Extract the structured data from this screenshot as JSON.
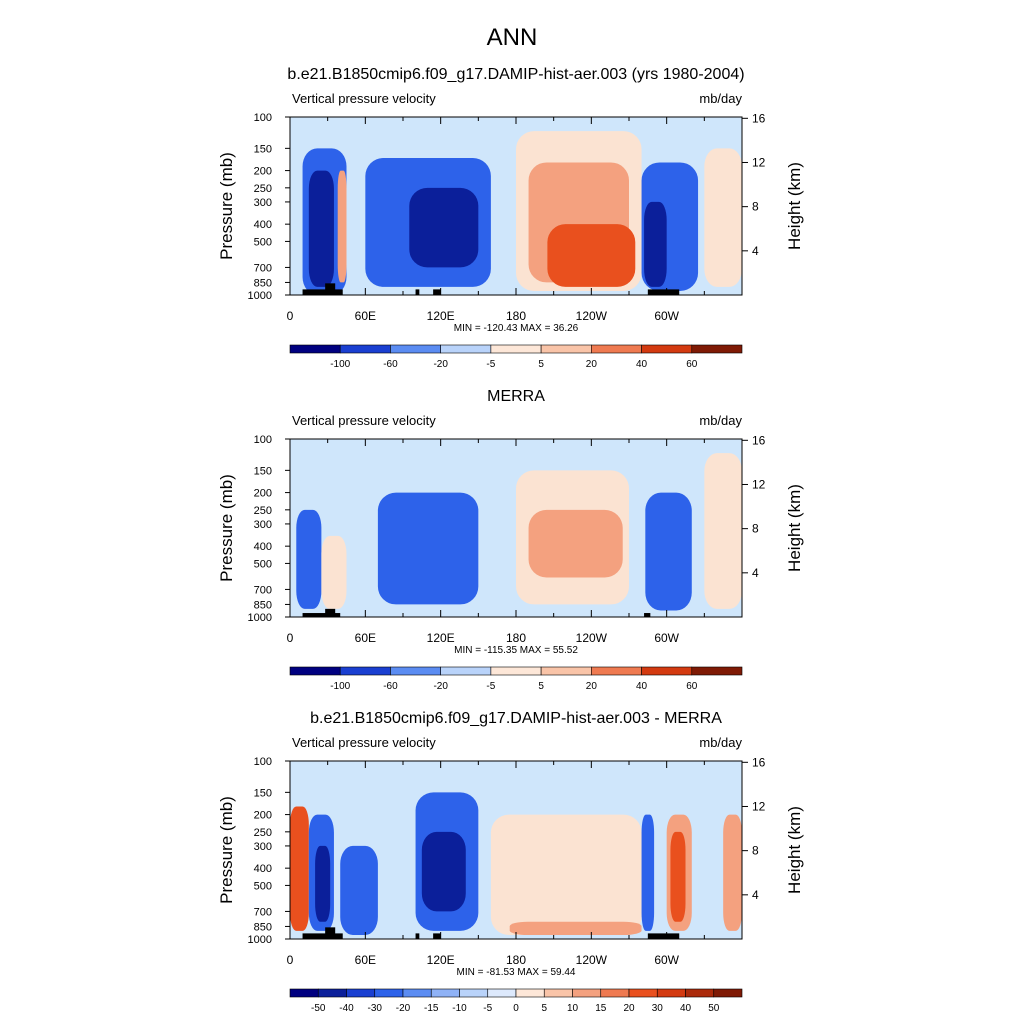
{
  "figure": {
    "title": "ANN"
  },
  "colors": {
    "strong_up": "#0b1f9a",
    "up": "#2d62ea",
    "weak_up": "#cfe6fb",
    "weak_down": "#fbe3d2",
    "down": "#f4a17f",
    "strong_down": "#e9501e",
    "land_mask": "#000000"
  },
  "chart_data": [
    {
      "type": "heatmap",
      "title": "b.e21.B1850cmip6.f09_g17.DAMIP-hist-aer.003 (yrs 1980-2004)",
      "left_label": "Vertical pressure velocity",
      "units": "mb/day",
      "ylabel": "Pressure (mb)",
      "ylabel_right": "Height (km)",
      "x_ticks": [
        "0",
        "60E",
        "120E",
        "180",
        "120W",
        "60W"
      ],
      "y_ticks": [
        "100",
        "150",
        "200",
        "250",
        "300",
        "400",
        "500",
        "700",
        "850",
        "1000"
      ],
      "y_ticks_right": [
        "16",
        "12",
        "8",
        "4"
      ],
      "stats": "MIN = -120.43  MAX =  36.26",
      "colorbar_labels": [
        "-100",
        "-60",
        "-20",
        "-5",
        "5",
        "20",
        "40",
        "60"
      ],
      "features": [
        {
          "lon": [
            10,
            45
          ],
          "p": [
            150,
            1000
          ],
          "level": "up"
        },
        {
          "lon": [
            15,
            35
          ],
          "p": [
            200,
            900
          ],
          "level": "strong_up"
        },
        {
          "lon": [
            38,
            45
          ],
          "p": [
            200,
            850
          ],
          "level": "down"
        },
        {
          "lon": [
            55,
            175
          ],
          "p": [
            140,
            950
          ],
          "level": "weak_up"
        },
        {
          "lon": [
            60,
            160
          ],
          "p": [
            170,
            900
          ],
          "level": "up"
        },
        {
          "lon": [
            95,
            150
          ],
          "p": [
            250,
            700
          ],
          "level": "strong_up"
        },
        {
          "lon": [
            180,
            280
          ],
          "p": [
            120,
            950
          ],
          "level": "weak_down"
        },
        {
          "lon": [
            190,
            270
          ],
          "p": [
            180,
            850
          ],
          "level": "down"
        },
        {
          "lon": [
            205,
            275
          ],
          "p": [
            400,
            900
          ],
          "level": "strong_down"
        },
        {
          "lon": [
            280,
            325
          ],
          "p": [
            180,
            950
          ],
          "level": "up"
        },
        {
          "lon": [
            282,
            300
          ],
          "p": [
            300,
            900
          ],
          "level": "strong_up"
        },
        {
          "lon": [
            330,
            360
          ],
          "p": [
            150,
            900
          ],
          "level": "weak_down"
        }
      ],
      "land_blocks": [
        {
          "lon": [
            10,
            42
          ],
          "p": [
            930,
            1000
          ]
        },
        {
          "lon": [
            28,
            36
          ],
          "p": [
            860,
            1000
          ]
        },
        {
          "lon": [
            100,
            103
          ],
          "p": [
            930,
            1000
          ]
        },
        {
          "lon": [
            114,
            120
          ],
          "p": [
            930,
            1000
          ]
        },
        {
          "lon": [
            285,
            310
          ],
          "p": [
            930,
            1000
          ]
        }
      ]
    },
    {
      "type": "heatmap",
      "title": "MERRA",
      "left_label": "Vertical pressure velocity",
      "units": "mb/day",
      "ylabel": "Pressure (mb)",
      "ylabel_right": "Height (km)",
      "x_ticks": [
        "0",
        "60E",
        "120E",
        "180",
        "120W",
        "60W"
      ],
      "y_ticks": [
        "100",
        "150",
        "200",
        "250",
        "300",
        "400",
        "500",
        "700",
        "850",
        "1000"
      ],
      "y_ticks_right": [
        "16",
        "12",
        "8",
        "4"
      ],
      "stats": "MIN = -115.35  MAX =  55.52",
      "colorbar_labels": [
        "-100",
        "-60",
        "-20",
        "-5",
        "5",
        "20",
        "40",
        "60"
      ],
      "features": [
        {
          "lon": [
            0,
            30
          ],
          "p": [
            170,
            950
          ],
          "level": "weak_up"
        },
        {
          "lon": [
            5,
            25
          ],
          "p": [
            250,
            900
          ],
          "level": "up"
        },
        {
          "lon": [
            25,
            45
          ],
          "p": [
            350,
            900
          ],
          "level": "weak_down"
        },
        {
          "lon": [
            55,
            170
          ],
          "p": [
            140,
            950
          ],
          "level": "weak_up"
        },
        {
          "lon": [
            70,
            150
          ],
          "p": [
            200,
            850
          ],
          "level": "up"
        },
        {
          "lon": [
            180,
            270
          ],
          "p": [
            150,
            850
          ],
          "level": "weak_down"
        },
        {
          "lon": [
            190,
            265
          ],
          "p": [
            250,
            600
          ],
          "level": "down"
        },
        {
          "lon": [
            280,
            330
          ],
          "p": [
            150,
            950
          ],
          "level": "weak_up"
        },
        {
          "lon": [
            283,
            320
          ],
          "p": [
            200,
            920
          ],
          "level": "up"
        },
        {
          "lon": [
            330,
            360
          ],
          "p": [
            120,
            900
          ],
          "level": "weak_down"
        }
      ],
      "land_blocks": [
        {
          "lon": [
            10,
            40
          ],
          "p": [
            950,
            1000
          ]
        },
        {
          "lon": [
            28,
            36
          ],
          "p": [
            900,
            1000
          ]
        },
        {
          "lon": [
            282,
            287
          ],
          "p": [
            950,
            1000
          ]
        }
      ]
    },
    {
      "type": "heatmap",
      "title": "b.e21.B1850cmip6.f09_g17.DAMIP-hist-aer.003 - MERRA",
      "left_label": "Vertical pressure velocity",
      "units": "mb/day",
      "ylabel": "Pressure (mb)",
      "ylabel_right": "Height (km)",
      "x_ticks": [
        "0",
        "60E",
        "120E",
        "180",
        "120W",
        "60W"
      ],
      "y_ticks": [
        "100",
        "150",
        "200",
        "250",
        "300",
        "400",
        "500",
        "700",
        "850",
        "1000"
      ],
      "y_ticks_right": [
        "16",
        "12",
        "8",
        "4"
      ],
      "stats": "MIN = -81.53  MAX =  59.44",
      "colorbar_labels": [
        "-50",
        "-40",
        "-30",
        "-20",
        "-15",
        "-10",
        "-5",
        "0",
        "5",
        "10",
        "15",
        "20",
        "30",
        "40",
        "50"
      ],
      "features": [
        {
          "lon": [
            0,
            15
          ],
          "p": [
            180,
            900
          ],
          "level": "strong_down"
        },
        {
          "lon": [
            15,
            35
          ],
          "p": [
            200,
            900
          ],
          "level": "up"
        },
        {
          "lon": [
            20,
            32
          ],
          "p": [
            300,
            800
          ],
          "level": "strong_up"
        },
        {
          "lon": [
            40,
            70
          ],
          "p": [
            300,
            950
          ],
          "level": "up"
        },
        {
          "lon": [
            100,
            150
          ],
          "p": [
            150,
            900
          ],
          "level": "up"
        },
        {
          "lon": [
            105,
            140
          ],
          "p": [
            250,
            700
          ],
          "level": "strong_up"
        },
        {
          "lon": [
            160,
            280
          ],
          "p": [
            200,
            950
          ],
          "level": "weak_down"
        },
        {
          "lon": [
            175,
            280
          ],
          "p": [
            800,
            950
          ],
          "level": "down"
        },
        {
          "lon": [
            280,
            290
          ],
          "p": [
            200,
            900
          ],
          "level": "up"
        },
        {
          "lon": [
            300,
            320
          ],
          "p": [
            200,
            900
          ],
          "level": "down"
        },
        {
          "lon": [
            303,
            315
          ],
          "p": [
            250,
            800
          ],
          "level": "strong_down"
        },
        {
          "lon": [
            345,
            360
          ],
          "p": [
            200,
            900
          ],
          "level": "down"
        }
      ],
      "land_blocks": [
        {
          "lon": [
            10,
            42
          ],
          "p": [
            930,
            1000
          ]
        },
        {
          "lon": [
            28,
            36
          ],
          "p": [
            860,
            1000
          ]
        },
        {
          "lon": [
            100,
            103
          ],
          "p": [
            930,
            1000
          ]
        },
        {
          "lon": [
            114,
            120
          ],
          "p": [
            930,
            1000
          ]
        },
        {
          "lon": [
            285,
            310
          ],
          "p": [
            930,
            1000
          ]
        }
      ]
    }
  ]
}
